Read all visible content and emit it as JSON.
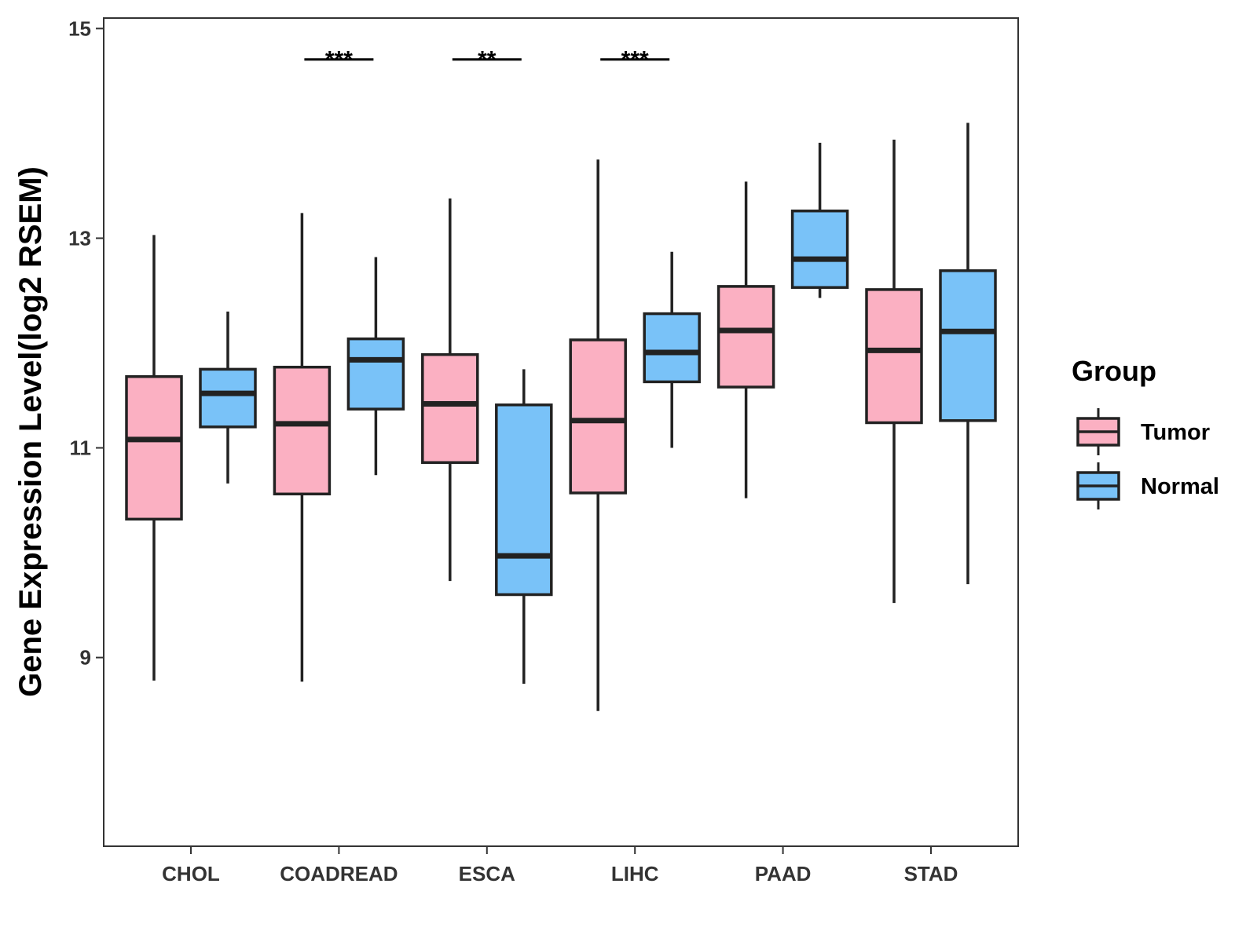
{
  "chart_data": {
    "type": "boxplot",
    "title": "",
    "xlabel": "",
    "ylabel": "Gene Expression Level(log2 RSEM)",
    "ylim": [
      7.2,
      15.1
    ],
    "yticks": [
      9,
      11,
      13,
      15
    ],
    "categories": [
      "CHOL",
      "COADREAD",
      "ESCA",
      "LIHC",
      "PAAD",
      "STAD"
    ],
    "series": [
      {
        "name": "Tumor",
        "color": "#FBB0C2",
        "boxes": [
          {
            "category": "CHOL",
            "whisker_low": 8.78,
            "q1": 10.32,
            "median": 11.08,
            "q3": 11.68,
            "whisker_high": 13.03
          },
          {
            "category": "COADREAD",
            "whisker_low": 8.77,
            "q1": 10.56,
            "median": 11.23,
            "q3": 11.77,
            "whisker_high": 13.24
          },
          {
            "category": "ESCA",
            "whisker_low": 9.73,
            "q1": 10.86,
            "median": 11.42,
            "q3": 11.89,
            "whisker_high": 13.38
          },
          {
            "category": "LIHC",
            "whisker_low": 8.49,
            "q1": 10.57,
            "median": 11.26,
            "q3": 12.03,
            "whisker_high": 13.75
          },
          {
            "category": "PAAD",
            "whisker_low": 10.52,
            "q1": 11.58,
            "median": 12.12,
            "q3": 12.54,
            "whisker_high": 13.54
          },
          {
            "category": "STAD",
            "whisker_low": 9.52,
            "q1": 11.24,
            "median": 11.93,
            "q3": 12.51,
            "whisker_high": 13.94
          }
        ]
      },
      {
        "name": "Normal",
        "color": "#79C2F8",
        "boxes": [
          {
            "category": "CHOL",
            "whisker_low": 10.66,
            "q1": 11.2,
            "median": 11.52,
            "q3": 11.75,
            "whisker_high": 12.3
          },
          {
            "category": "COADREAD",
            "whisker_low": 10.74,
            "q1": 11.37,
            "median": 11.84,
            "q3": 12.04,
            "whisker_high": 12.82
          },
          {
            "category": "ESCA",
            "whisker_low": 8.75,
            "q1": 9.6,
            "median": 9.97,
            "q3": 11.41,
            "whisker_high": 11.75
          },
          {
            "category": "LIHC",
            "whisker_low": 11.0,
            "q1": 11.63,
            "median": 11.91,
            "q3": 12.28,
            "whisker_high": 12.87
          },
          {
            "category": "PAAD",
            "whisker_low": 12.43,
            "q1": 12.53,
            "median": 12.8,
            "q3": 13.26,
            "whisker_high": 13.91
          },
          {
            "category": "STAD",
            "whisker_low": 9.7,
            "q1": 11.26,
            "median": 12.11,
            "q3": 12.69,
            "whisker_high": 14.1
          }
        ]
      }
    ],
    "annotations": [
      {
        "category": "COADREAD",
        "text": "***",
        "y": 14.72
      },
      {
        "category": "ESCA",
        "text": "**",
        "y": 14.72
      },
      {
        "category": "LIHC",
        "text": "***",
        "y": 14.72
      }
    ],
    "legend": {
      "title": "Group",
      "position": "right",
      "entries": [
        "Tumor",
        "Normal"
      ]
    }
  }
}
